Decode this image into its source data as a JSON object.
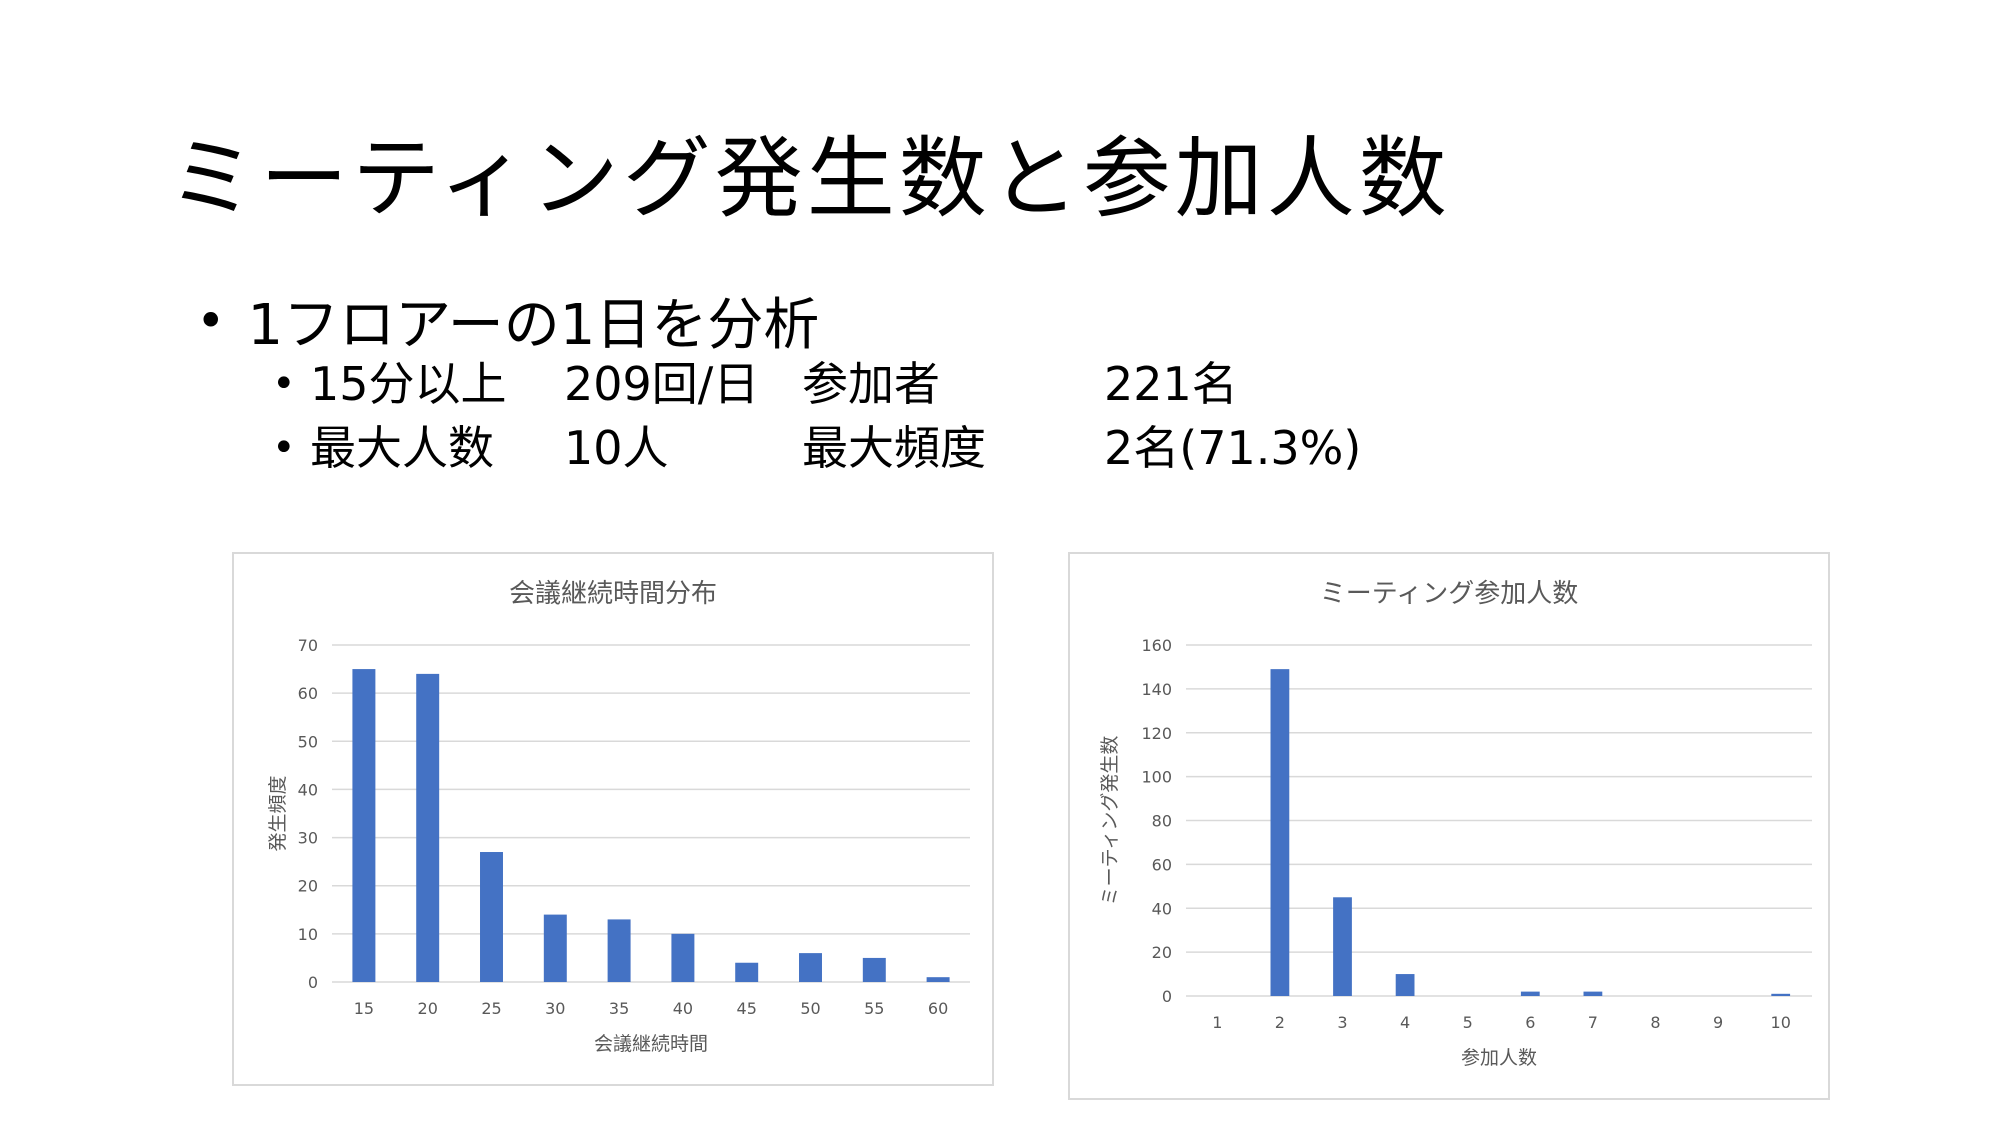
{
  "slide": {
    "title": "ミーティング発生数と参加人数",
    "bullet_l1": "1フロアーの1日を分析",
    "rows": [
      {
        "c1": "15分以上",
        "c2": "209回/日",
        "c3": "参加者",
        "c4": "221名"
      },
      {
        "c1": "最大人数",
        "c2": "10人",
        "c3": "最大頻度",
        "c4": "2名(71.3%)"
      }
    ]
  },
  "chart_data": [
    {
      "type": "bar",
      "title": "会議継続時間分布",
      "xlabel": "会議継続時間",
      "ylabel": "発生頻度",
      "categories": [
        "15",
        "20",
        "25",
        "30",
        "35",
        "40",
        "45",
        "50",
        "55",
        "60"
      ],
      "values": [
        65,
        64,
        27,
        14,
        13,
        10,
        4,
        6,
        5,
        1
      ],
      "ylim": [
        0,
        70
      ],
      "yticks": [
        "0",
        "10",
        "20",
        "30",
        "40",
        "50",
        "60",
        "70"
      ],
      "grid": true,
      "color": "#4472C4"
    },
    {
      "type": "bar",
      "title": "ミーティング参加人数",
      "xlabel": "参加人数",
      "ylabel": "ミーティング発生数",
      "categories": [
        "1",
        "2",
        "3",
        "4",
        "5",
        "6",
        "7",
        "8",
        "9",
        "10"
      ],
      "values": [
        0,
        149,
        45,
        10,
        0,
        2,
        2,
        0,
        0,
        1
      ],
      "ylim": [
        0,
        160
      ],
      "yticks": [
        "0",
        "20",
        "40",
        "60",
        "80",
        "100",
        "120",
        "140",
        "160"
      ],
      "grid": true,
      "color": "#4472C4"
    }
  ]
}
